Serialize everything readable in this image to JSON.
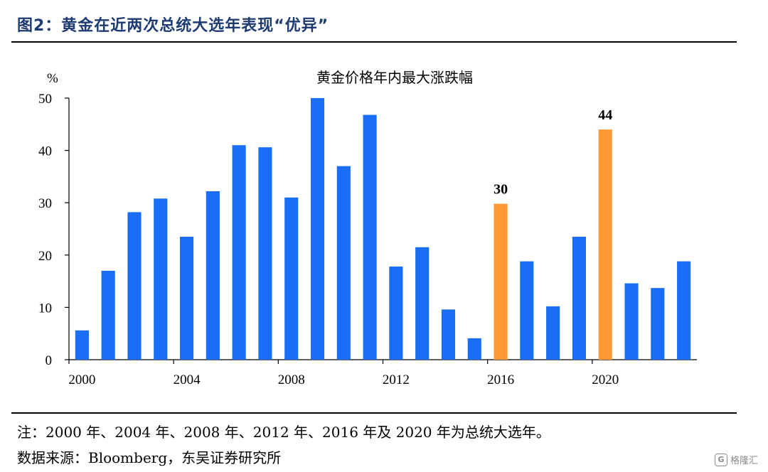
{
  "figure_title": "图2：黄金在近两次总统大选年表现“优异”",
  "note": "注：2000 年、2004 年、2008 年、2012 年、2016 年及 2020 年为总统大选年。",
  "source": "数据来源：Bloomberg，东吴证券研究所",
  "watermark": {
    "icon_text": "G",
    "text": "格隆汇",
    "icon": "gelonghui-logo-icon"
  },
  "colors": {
    "bar": "#1a6ef5",
    "highlight": "#ff9933",
    "title": "#1f3b73"
  },
  "chart_data": {
    "type": "bar",
    "title": "黄金价格年内最大涨跌幅",
    "ylabel": "%",
    "ylim": [
      0,
      50
    ],
    "yticks": [
      0,
      10,
      20,
      30,
      40,
      50
    ],
    "xtick_labels": [
      "2000",
      "2004",
      "2008",
      "2012",
      "2016",
      "2020"
    ],
    "categories": [
      2000,
      2001,
      2002,
      2003,
      2004,
      2005,
      2006,
      2007,
      2008,
      2009,
      2010,
      2011,
      2012,
      2013,
      2014,
      2015,
      2016,
      2017,
      2018,
      2019,
      2020,
      2021,
      2022,
      2023
    ],
    "values": [
      5.6,
      17.0,
      28.2,
      30.8,
      23.5,
      32.2,
      41.0,
      40.6,
      31.0,
      50.0,
      37.0,
      46.8,
      17.8,
      21.5,
      9.6,
      4.1,
      29.8,
      18.8,
      10.2,
      23.5,
      44.0,
      14.6,
      13.7,
      18.8
    ],
    "highlighted": [
      2016,
      2020
    ],
    "data_labels": [
      {
        "category": 2016,
        "text": "30"
      },
      {
        "category": 2020,
        "text": "44"
      }
    ],
    "grid": false,
    "legend": "none"
  }
}
